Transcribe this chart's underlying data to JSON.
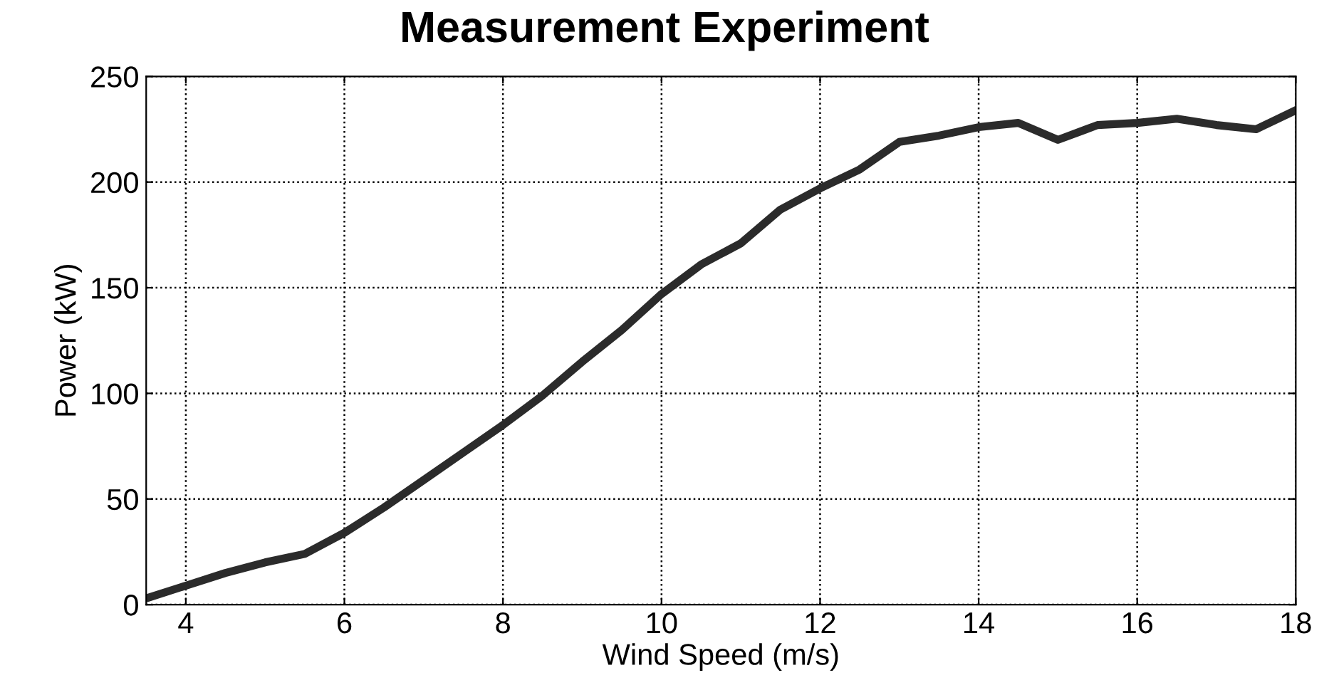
{
  "chart_data": {
    "type": "line",
    "title": "Measurement Experiment",
    "xlabel": "Wind Speed (m/s)",
    "ylabel": "Power (kW)",
    "x": [
      3.5,
      4,
      4.5,
      5,
      5.5,
      6,
      6.5,
      7,
      7.5,
      8,
      8.5,
      9,
      9.5,
      10,
      10.5,
      11,
      11.5,
      12,
      12.5,
      13,
      13.5,
      14,
      14.5,
      15,
      15.5,
      16,
      16.5,
      17,
      17.5,
      18
    ],
    "series": [
      {
        "color": "#2b2b2b",
        "values": [
          3,
          9,
          15,
          20,
          24,
          34,
          46,
          59,
          72,
          85,
          99,
          115,
          130,
          147,
          161,
          171,
          187,
          197,
          206,
          219,
          222,
          226,
          228,
          220,
          227,
          228,
          230,
          227,
          225,
          234
        ]
      }
    ],
    "xlim": [
      3.5,
      18
    ],
    "xticks": [
      4,
      6,
      8,
      10,
      12,
      14,
      16,
      18
    ],
    "ylim": [
      0,
      250
    ],
    "yticks": [
      0,
      50,
      100,
      150,
      200,
      250
    ],
    "grid": true,
    "line_style": "solid",
    "marker": "none"
  }
}
